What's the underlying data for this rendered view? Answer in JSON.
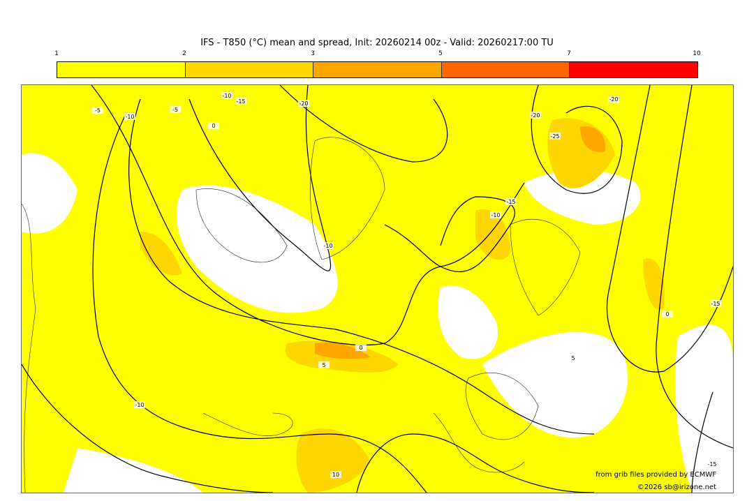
{
  "title": "IFS - T850 (°C) mean and spread, Init: 20260214 00z - Valid: 20260217:00 TU",
  "colorbar": {
    "ticks": [
      "1",
      "2",
      "3",
      "5",
      "7",
      "10"
    ],
    "colors": [
      "#ffff00",
      "#ffd700",
      "#ffa500",
      "#ff6600",
      "#ff0000"
    ]
  },
  "contour_labels": [
    "-5",
    "-10",
    "-5",
    "0",
    "-10",
    "-15",
    "-20",
    "-20",
    "-20",
    "-25",
    "-15",
    "-10",
    "-10",
    "0",
    "5",
    "-10",
    "10",
    "0",
    "5",
    "-15",
    "-15"
  ],
  "credits": {
    "source": "from grib files provided by ECMWF",
    "copyright": "©2026 sb@irizone.net"
  }
}
